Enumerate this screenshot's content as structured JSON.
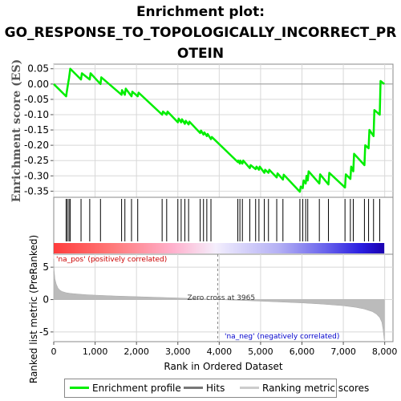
{
  "title": {
    "line1": "Enrichment plot:",
    "line2": "GO_RESPONSE_TO_TOPOLOGICALLY_INCORRECT_PR",
    "line3": "OTEIN"
  },
  "colors": {
    "enrichment": "#00ee00",
    "hits": "#000000",
    "ranking_fill": "#bbbbbb",
    "pos_label": "#cc0000",
    "neg_label": "#0000cc",
    "grid": "#d8d8d8",
    "zero_line": "#888888"
  },
  "legend": {
    "enrichment_label": "Enrichment profile",
    "hits_label": "Hits",
    "ranking_label": "Ranking metric scores"
  },
  "chart_data": [
    {
      "type": "line",
      "title": "Enrichment plot: GO_RESPONSE_TO_TOPOLOGICALLY_INCORRECT_PROTEIN",
      "ylabel": "Enrichment score (ES)",
      "xlabel": "",
      "xlim": [
        0,
        8200
      ],
      "ylim": [
        -0.37,
        0.065
      ],
      "y_ticks": [
        0.05,
        0.0,
        -0.05,
        -0.1,
        -0.15,
        -0.2,
        -0.25,
        -0.3,
        -0.35
      ],
      "y_tick_labels": [
        "0.05",
        "0.00",
        "-0.05",
        "-0.10",
        "-0.15",
        "-0.20",
        "-0.25",
        "-0.30",
        "-0.35"
      ],
      "grid": true,
      "series": [
        {
          "x": [
            0,
            300,
            310,
            340,
            370,
            400,
            660,
            680,
            870,
            890,
            1130,
            1150,
            1640,
            1650,
            1720,
            1740,
            1880,
            1900,
            2030,
            2050,
            2620,
            2640,
            2730,
            2750,
            3000,
            3020,
            3080,
            3100,
            3170,
            3190,
            3260,
            3280,
            3540,
            3560,
            3620,
            3640,
            3700,
            3720,
            3800,
            3820,
            4450,
            4460,
            4500,
            4510,
            4560,
            4580,
            4740,
            4760,
            4880,
            4900,
            4960,
            4980,
            5090,
            5110,
            5190,
            5210,
            5390,
            5410,
            5540,
            5560,
            5950,
            5970,
            6020,
            6040,
            6090,
            6110,
            6140,
            6160,
            6420,
            6440,
            6640,
            6660,
            7040,
            7060,
            7170,
            7190,
            7240,
            7260,
            7510,
            7530,
            7610,
            7630,
            7730,
            7750,
            7880,
            7900,
            7990
          ],
          "y": [
            0.0,
            -0.04,
            -0.03,
            -0.005,
            0.02,
            0.05,
            0.015,
            0.035,
            0.015,
            0.035,
            0.0,
            0.022,
            -0.035,
            -0.02,
            -0.035,
            -0.015,
            -0.04,
            -0.025,
            -0.04,
            -0.028,
            -0.1,
            -0.09,
            -0.1,
            -0.09,
            -0.125,
            -0.113,
            -0.125,
            -0.115,
            -0.13,
            -0.12,
            -0.132,
            -0.123,
            -0.16,
            -0.152,
            -0.165,
            -0.158,
            -0.17,
            -0.163,
            -0.18,
            -0.173,
            -0.255,
            -0.25,
            -0.26,
            -0.25,
            -0.26,
            -0.25,
            -0.275,
            -0.265,
            -0.278,
            -0.27,
            -0.28,
            -0.27,
            -0.29,
            -0.28,
            -0.29,
            -0.28,
            -0.305,
            -0.292,
            -0.312,
            -0.296,
            -0.352,
            -0.335,
            -0.34,
            -0.315,
            -0.325,
            -0.3,
            -0.315,
            -0.285,
            -0.325,
            -0.295,
            -0.328,
            -0.29,
            -0.338,
            -0.295,
            -0.31,
            -0.27,
            -0.285,
            -0.228,
            -0.265,
            -0.2,
            -0.21,
            -0.15,
            -0.17,
            -0.085,
            -0.1,
            0.01,
            0.0
          ]
        }
      ]
    },
    {
      "type": "scatter",
      "title": "",
      "xlim": [
        0,
        8200
      ],
      "hits": [
        300,
        330,
        370,
        400,
        660,
        870,
        1130,
        1640,
        1720,
        1880,
        2030,
        2620,
        2730,
        3000,
        3080,
        3170,
        3260,
        3540,
        3620,
        3700,
        3800,
        4450,
        4500,
        4560,
        4740,
        4880,
        4960,
        5090,
        5190,
        5390,
        5540,
        5950,
        6020,
        6090,
        6140,
        6420,
        6640,
        7040,
        7170,
        7240,
        7510,
        7610,
        7730,
        7880
      ]
    },
    {
      "type": "area",
      "title": "",
      "xlabel": "Rank in Ordered Dataset",
      "ylabel": "Ranked list metric (PreRanked)",
      "xlim": [
        0,
        8200
      ],
      "ylim": [
        -6.5,
        7
      ],
      "y_ticks": [
        5,
        0,
        -5
      ],
      "y_tick_labels": [
        "5",
        "0",
        "-5"
      ],
      "x_ticks": [
        0,
        1000,
        2000,
        3000,
        4000,
        5000,
        6000,
        7000,
        8000
      ],
      "x_tick_labels": [
        "0",
        "1,000",
        "2,000",
        "3,000",
        "4,000",
        "5,000",
        "6,000",
        "7,000",
        "8,000"
      ],
      "zero_cross_rank": 3965,
      "zero_cross_label": "Zero cross at 3965",
      "pos_label": "'na_pos' (positively correlated)",
      "neg_label": "'na_neg' (negatively correlated)",
      "series": [
        {
          "x": [
            0,
            10,
            30,
            60,
            100,
            150,
            200,
            300,
            400,
            600,
            800,
            1000,
            1500,
            2000,
            2500,
            3000,
            3500,
            3965,
            4500,
            5000,
            5500,
            6000,
            6500,
            7000,
            7300,
            7500,
            7700,
            7800,
            7880,
            7930,
            7960,
            7990
          ],
          "y": [
            6.3,
            4.5,
            3.2,
            2.4,
            1.8,
            1.45,
            1.25,
            1.05,
            0.95,
            0.85,
            0.75,
            0.68,
            0.55,
            0.45,
            0.35,
            0.25,
            0.12,
            0.0,
            -0.12,
            -0.25,
            -0.38,
            -0.52,
            -0.7,
            -0.95,
            -1.2,
            -1.45,
            -1.85,
            -2.25,
            -2.8,
            -3.5,
            -4.6,
            -6.3
          ]
        }
      ]
    }
  ]
}
